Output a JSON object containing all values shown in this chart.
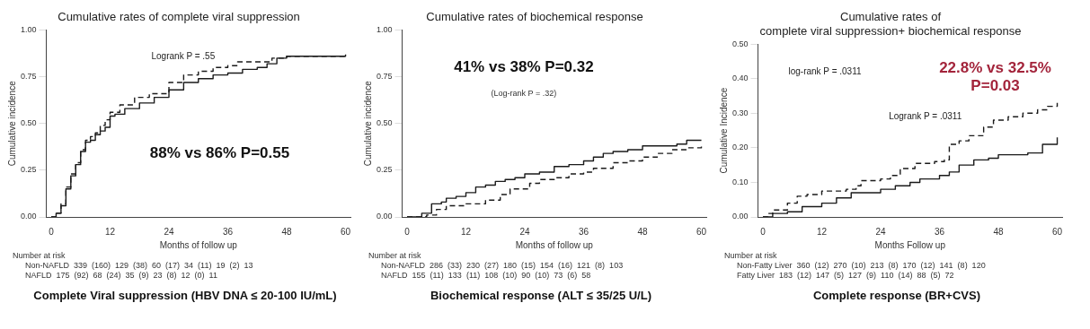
{
  "chart_data": [
    {
      "type": "step",
      "title": "Cumulative rates of complete viral suppression",
      "subtitle": "Complete Viral suppression (HBV DNA ≤ 20-100 IU/mL)",
      "xlabel": "Months of follow up",
      "ylabel": "Cumulative incidence",
      "xlim": [
        -1,
        61
      ],
      "xticks": [
        0,
        12,
        24,
        36,
        48,
        60
      ],
      "ylim": [
        0,
        1
      ],
      "yticks": [
        {
          "value": 0,
          "label": "0.00"
        },
        {
          "value": 0.25,
          "label": "0.25"
        },
        {
          "value": 0.5,
          "label": "0.50"
        },
        {
          "value": 0.75,
          "label": "0.75"
        },
        {
          "value": 1,
          "label": "1.00"
        }
      ],
      "legend": false,
      "grid": false,
      "series": [
        {
          "color": "#1a1a1a",
          "line_style": "solid",
          "x": [
            0,
            1,
            2,
            3,
            4,
            5,
            6,
            7,
            8,
            9,
            10,
            11,
            12,
            13,
            15,
            18,
            21,
            24,
            27,
            30,
            33,
            36,
            39,
            42,
            44,
            46,
            48,
            54,
            60
          ],
          "values": [
            0,
            0.02,
            0.06,
            0.15,
            0.22,
            0.28,
            0.35,
            0.4,
            0.41,
            0.44,
            0.46,
            0.48,
            0.54,
            0.55,
            0.58,
            0.61,
            0.64,
            0.68,
            0.72,
            0.74,
            0.76,
            0.77,
            0.79,
            0.8,
            0.82,
            0.85,
            0.86,
            0.86,
            0.87
          ]
        },
        {
          "color": "#1a1a1a",
          "line_style": "dashed",
          "x": [
            0,
            1,
            2,
            3,
            4,
            5,
            6,
            7,
            8,
            9,
            10,
            11,
            12,
            14,
            17,
            20,
            24,
            27,
            30,
            33,
            36,
            38,
            42,
            45,
            48,
            54,
            60
          ],
          "values": [
            0,
            0.02,
            0.07,
            0.16,
            0.23,
            0.29,
            0.36,
            0.41,
            0.43,
            0.45,
            0.49,
            0.52,
            0.56,
            0.6,
            0.64,
            0.66,
            0.72,
            0.76,
            0.78,
            0.8,
            0.81,
            0.83,
            0.83,
            0.85,
            0.86,
            0.86,
            0.87
          ]
        }
      ],
      "annotations": [
        "Logrank P = .55",
        "88% vs 86% P=0.55",
        "Number at risk",
        "Non-NAFLD  339  (160)  129  (38)  60  (17)  34  (11)  19  (2)  13",
        "NAFLD  175  (92)  68  (24)  35  (9)  23  (8)  12  (0)  11"
      ]
    },
    {
      "type": "step",
      "title": "Cumulative rates of biochemical response",
      "subtitle": "Biochemical response (ALT ≤ 35/25 U/L)",
      "xlabel": "Months of follow up",
      "ylabel": "Cumulative incidence",
      "xlim": [
        -1,
        61
      ],
      "xticks": [
        0,
        12,
        24,
        36,
        48,
        60
      ],
      "ylim": [
        0,
        1
      ],
      "yticks": [
        {
          "value": 0,
          "label": "0.00"
        },
        {
          "value": 0.25,
          "label": "0.25"
        },
        {
          "value": 0.5,
          "label": "0.50"
        },
        {
          "value": 0.75,
          "label": "0.75"
        },
        {
          "value": 1,
          "label": "1.00"
        }
      ],
      "legend": false,
      "grid": false,
      "series": [
        {
          "color": "#1a1a1a",
          "line_style": "solid",
          "x": [
            0,
            3,
            5,
            7,
            8,
            10,
            12,
            14,
            16,
            18,
            20,
            22,
            24,
            27,
            30,
            33,
            36,
            38,
            40,
            42,
            45,
            48,
            52,
            55,
            57,
            60
          ],
          "values": [
            0,
            0.02,
            0.07,
            0.08,
            0.1,
            0.11,
            0.13,
            0.16,
            0.17,
            0.19,
            0.2,
            0.21,
            0.23,
            0.24,
            0.27,
            0.28,
            0.3,
            0.32,
            0.34,
            0.35,
            0.36,
            0.38,
            0.38,
            0.39,
            0.41,
            0.41
          ]
        },
        {
          "color": "#1a1a1a",
          "line_style": "dashed",
          "x": [
            0,
            4,
            6,
            8,
            12,
            16,
            19,
            21,
            24,
            25,
            27,
            30,
            33,
            36,
            38,
            42,
            45,
            48,
            51,
            54,
            57,
            60
          ],
          "values": [
            0,
            0.01,
            0.04,
            0.06,
            0.07,
            0.09,
            0.12,
            0.15,
            0.15,
            0.18,
            0.2,
            0.21,
            0.23,
            0.24,
            0.26,
            0.29,
            0.3,
            0.32,
            0.34,
            0.36,
            0.37,
            0.38
          ]
        }
      ],
      "annotations": [
        "41% vs 38% P=0.32",
        "(Log-rank P = .32)",
        "Number at risk",
        "Non-NAFLD  286  (33)  230  (27)  180  (15)  154  (16)  121  (8)  103",
        "NAFLD  155  (11)  133  (11)  108  (10)  90  (10)  73  (6)  58"
      ]
    },
    {
      "type": "step",
      "title": "Cumulative rates of\ncomplete viral suppression+ biochemical response",
      "subtitle": "Complete response (BR+CVS)",
      "xlabel": "Months Follow up",
      "ylabel": "Cumulative Incidence",
      "xlim": [
        -1,
        61
      ],
      "xticks": [
        0,
        12,
        24,
        36,
        48,
        60
      ],
      "ylim": [
        0,
        0.5
      ],
      "yticks": [
        {
          "value": 0,
          "label": "0.00"
        },
        {
          "value": 0.1,
          "label": "0.10"
        },
        {
          "value": 0.2,
          "label": "0.20"
        },
        {
          "value": 0.3,
          "label": "0.30"
        },
        {
          "value": 0.4,
          "label": "0.40"
        },
        {
          "value": 0.5,
          "label": "0.50"
        }
      ],
      "legend": false,
      "grid": false,
      "series": [
        {
          "color": "#1a1a1a",
          "line_style": "solid",
          "x": [
            0,
            2,
            5,
            8,
            12,
            15,
            18,
            22,
            24,
            27,
            30,
            32,
            36,
            38,
            40,
            43,
            46,
            48,
            54,
            57,
            60
          ],
          "values": [
            0,
            0.01,
            0.015,
            0.03,
            0.04,
            0.055,
            0.07,
            0.07,
            0.08,
            0.09,
            0.1,
            0.11,
            0.12,
            0.13,
            0.15,
            0.165,
            0.17,
            0.18,
            0.185,
            0.21,
            0.23
          ]
        },
        {
          "color": "#1a1a1a",
          "line_style": "dashed",
          "x": [
            0,
            1,
            2,
            5,
            7,
            9,
            12,
            17,
            19,
            20,
            24,
            26,
            28,
            31,
            35,
            37,
            38,
            40,
            42,
            45,
            47,
            50,
            53,
            56,
            58,
            60
          ],
          "values": [
            0,
            0.01,
            0.02,
            0.04,
            0.06,
            0.065,
            0.075,
            0.08,
            0.09,
            0.105,
            0.11,
            0.12,
            0.14,
            0.155,
            0.16,
            0.165,
            0.21,
            0.22,
            0.235,
            0.26,
            0.28,
            0.29,
            0.3,
            0.31,
            0.32,
            0.33
          ]
        }
      ],
      "annotations": [
        "log-rank P = .0311",
        "22.8% vs 32.5%\nP=0.03",
        "Logrank P = .0311",
        "Number at risk",
        "Non-Fatty Liver  360  (12)  270  (10)  213  (8)  170  (12)  141  (8)  120",
        "Fatty Liver  183  (12)  147  (5)  127  (9)  110  (14)  88  (5)  72"
      ]
    }
  ]
}
